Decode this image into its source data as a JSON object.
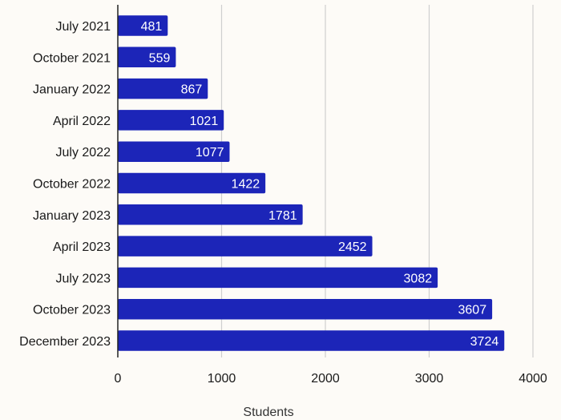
{
  "chart_data": {
    "type": "bar",
    "orientation": "horizontal",
    "categories": [
      "July 2021",
      "October 2021",
      "January 2022",
      "April 2022",
      "July 2022",
      "October 2022",
      "January 2023",
      "April 2023",
      "July 2023",
      "October 2023",
      "December 2023"
    ],
    "values": [
      481,
      559,
      867,
      1021,
      1077,
      1422,
      1781,
      2452,
      3082,
      3607,
      3724
    ],
    "xlabel": "Students",
    "ylabel": "",
    "xlim": [
      0,
      4000
    ],
    "xticks": [
      0,
      1000,
      2000,
      3000,
      4000
    ],
    "grid": true,
    "bar_color": "#1c25b8",
    "grid_color": "#cfcfcf",
    "data_labels": "inside-end"
  }
}
